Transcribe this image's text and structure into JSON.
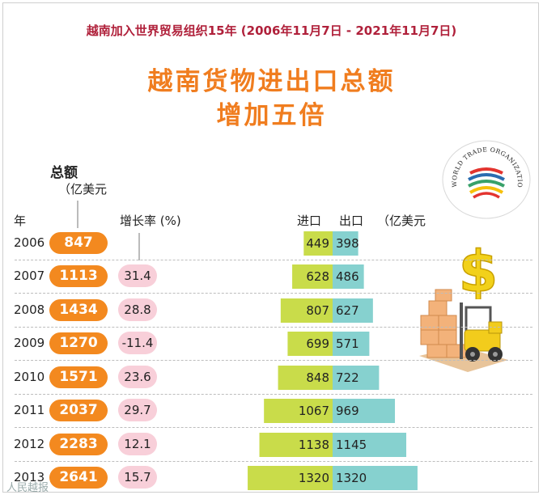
{
  "header": {
    "subtitle": "越南加入世界贸易组织15年 (2006年11月7日 - 2021年11月7日)",
    "title_line1": "越南货物进出口总额",
    "title_line2": "增加五倍"
  },
  "labels": {
    "total": "总额",
    "total_unit": "（亿美元",
    "year": "年",
    "growth": "增长率 (%)",
    "import": "进口",
    "export": "出口",
    "unit": "（亿美元"
  },
  "logo_text": "WORLD TRADE ORGANIZATION",
  "watermark": "人民越报",
  "colors": {
    "total_pill": "#f3891f",
    "growth_pill": "#f8cfd9",
    "import_bar": "#c9dc4a",
    "export_bar": "#86d1cf",
    "title": "#f07d1f",
    "subtitle": "#b0213b"
  },
  "rows": [
    {
      "year": "2006",
      "total": "847",
      "growth": ""
    },
    {
      "year": "2007",
      "total": "1113",
      "growth": "31.4"
    },
    {
      "year": "2008",
      "total": "1434",
      "growth": "28.8"
    },
    {
      "year": "2009",
      "total": "1270",
      "growth": "-11.4"
    },
    {
      "year": "2010",
      "total": "1571",
      "growth": "23.6"
    },
    {
      "year": "2011",
      "total": "2037",
      "growth": "29.7"
    },
    {
      "year": "2012",
      "total": "2283",
      "growth": "12.1"
    },
    {
      "year": "2013",
      "total": "2641",
      "growth": "15.7"
    }
  ],
  "chart_data": {
    "type": "bar",
    "categories": [
      "2006",
      "2007",
      "2008",
      "2009",
      "2010",
      "2011",
      "2012",
      "2013"
    ],
    "series": [
      {
        "name": "进口",
        "values": [
          449,
          628,
          807,
          699,
          848,
          1067,
          1138,
          1320
        ]
      },
      {
        "name": "出口",
        "values": [
          398,
          486,
          627,
          571,
          722,
          969,
          1145,
          1320
        ]
      }
    ],
    "totals": [
      847,
      1113,
      1434,
      1270,
      1571,
      2037,
      2283,
      2641
    ],
    "growth_rate": [
      null,
      31.4,
      28.8,
      -11.4,
      23.6,
      29.7,
      12.1,
      15.7
    ],
    "title": "越南货物进出口总额",
    "xlabel": "",
    "ylabel": ""
  }
}
